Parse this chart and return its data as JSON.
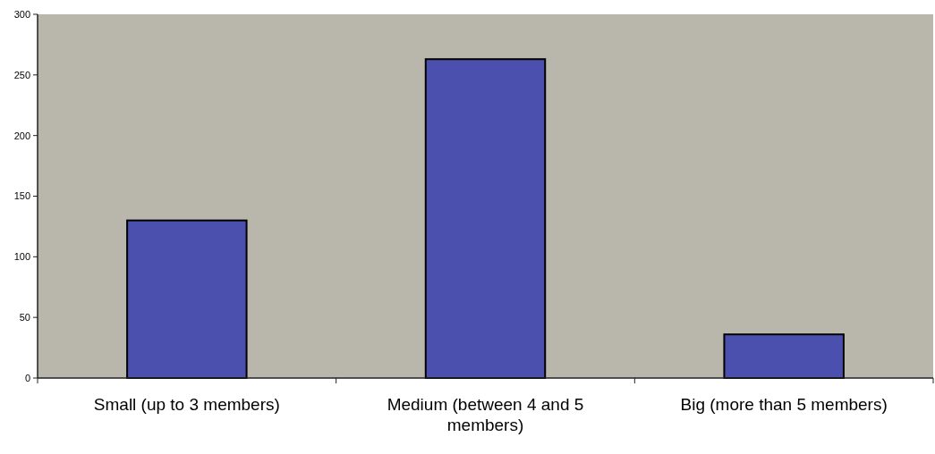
{
  "chart_data": {
    "type": "bar",
    "categories": [
      "Small (up to 3 members)",
      "Medium (between 4 and 5 members)",
      "Big (more than 5 members)"
    ],
    "values": [
      130,
      263,
      36
    ],
    "color": "#4b4fae",
    "ylim": [
      0,
      300
    ],
    "yticks": [
      0,
      50,
      100,
      150,
      200,
      250,
      300
    ],
    "grid": false
  }
}
